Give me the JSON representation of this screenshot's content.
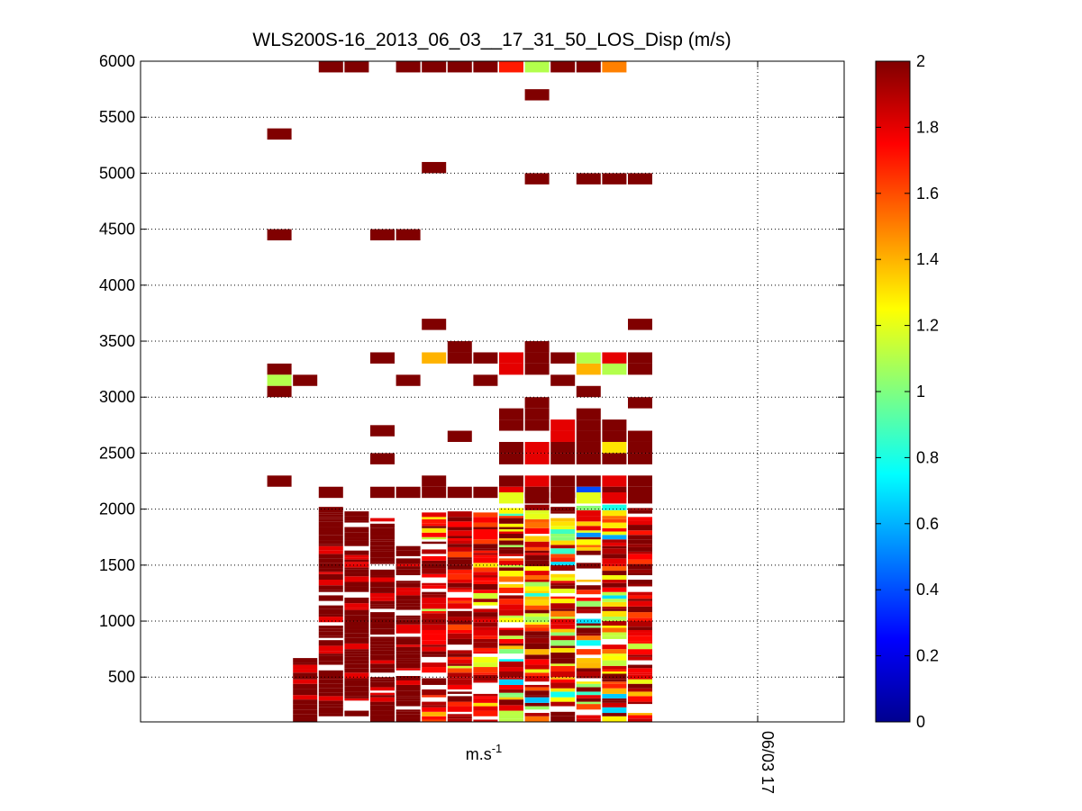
{
  "chart_data": {
    "type": "heatmap",
    "title": "WLS200S-16_2013_06_03__17_31_50_LOS_Disp (m/s)",
    "xlabel": "m.s",
    "xlabel_sup": "-1",
    "ylabel": "",
    "ylim": [
      100,
      6000
    ],
    "yticks": [
      500,
      1000,
      1500,
      2000,
      2500,
      3000,
      3500,
      4000,
      4500,
      5000,
      5500,
      6000
    ],
    "x_tick_label": "06/03 17",
    "grid": true,
    "colormap": "jet",
    "clim": [
      0,
      2
    ],
    "colorbar_ticks": [
      0,
      0.2,
      0.4,
      0.6,
      0.8,
      1,
      1.2,
      1.4,
      1.6,
      1.8,
      2
    ],
    "columns": 18,
    "cells": [
      [
        "c4",
        5950,
        2
      ],
      [
        "c5",
        5950,
        2
      ],
      [
        "c7",
        5950,
        2
      ],
      [
        "c8",
        5950,
        2
      ],
      [
        "c9",
        5950,
        2
      ],
      [
        "c10",
        5950,
        2
      ],
      [
        "c11",
        5950,
        1.7
      ],
      [
        "c12",
        5950,
        1.1
      ],
      [
        "c13",
        5950,
        2
      ],
      [
        "c14",
        5950,
        2
      ],
      [
        "c15",
        5950,
        1.5
      ],
      [
        "c12",
        5700,
        2
      ],
      [
        "c2",
        5350,
        2
      ],
      [
        "c8",
        5050,
        2
      ],
      [
        "c12",
        4950,
        2
      ],
      [
        "c14",
        4950,
        2
      ],
      [
        "c15",
        4950,
        2
      ],
      [
        "c16",
        4950,
        2
      ],
      [
        "c2",
        4450,
        2
      ],
      [
        "c6",
        4450,
        2
      ],
      [
        "c7",
        4450,
        2
      ],
      [
        "c8",
        3650,
        2
      ],
      [
        "c16",
        3650,
        2
      ],
      [
        "c9",
        3450,
        2
      ],
      [
        "c12",
        3450,
        2
      ],
      [
        "c6",
        3350,
        2
      ],
      [
        "c8",
        3350,
        1.4
      ],
      [
        "c9",
        3350,
        2
      ],
      [
        "c10",
        3350,
        2
      ],
      [
        "c11",
        3350,
        1.8
      ],
      [
        "c12",
        3350,
        2
      ],
      [
        "c13",
        3350,
        2
      ],
      [
        "c14",
        3350,
        1.1
      ],
      [
        "c15",
        3350,
        1.8
      ],
      [
        "c16",
        3350,
        2
      ],
      [
        "c2",
        3250,
        2
      ],
      [
        "c11",
        3250,
        1.8
      ],
      [
        "c12",
        3250,
        2
      ],
      [
        "c14",
        3250,
        1.4
      ],
      [
        "c15",
        3250,
        1.1
      ],
      [
        "c16",
        3250,
        2
      ],
      [
        "c2",
        3150,
        1.1
      ],
      [
        "c3",
        3150,
        2
      ],
      [
        "c7",
        3150,
        2
      ],
      [
        "c10",
        3150,
        2
      ],
      [
        "c13",
        3150,
        2
      ],
      [
        "c2",
        3050,
        2
      ],
      [
        "c14",
        3050,
        2
      ],
      [
        "c12",
        2950,
        2
      ],
      [
        "c16",
        2950,
        2
      ],
      [
        "c11",
        2850,
        2
      ],
      [
        "c12",
        2850,
        2
      ],
      [
        "c14",
        2850,
        2
      ],
      [
        "c11",
        2750,
        2
      ],
      [
        "c12",
        2750,
        2
      ],
      [
        "c13",
        2750,
        1.8
      ],
      [
        "c14",
        2750,
        2
      ],
      [
        "c15",
        2750,
        2
      ],
      [
        "c6",
        2700,
        2
      ],
      [
        "c9",
        2650,
        2
      ],
      [
        "c13",
        2650,
        1.8
      ],
      [
        "c14",
        2650,
        2
      ],
      [
        "c15",
        2650,
        2
      ],
      [
        "c16",
        2650,
        2
      ],
      [
        "c11",
        2550,
        2
      ],
      [
        "c12",
        2550,
        1.8
      ],
      [
        "c13",
        2550,
        2
      ],
      [
        "c14",
        2550,
        2
      ],
      [
        "c15",
        2550,
        1.3
      ],
      [
        "c16",
        2550,
        2
      ],
      [
        "c6",
        2450,
        2
      ],
      [
        "c11",
        2450,
        2
      ],
      [
        "c12",
        2450,
        1.8
      ],
      [
        "c13",
        2450,
        2
      ],
      [
        "c14",
        2450,
        2
      ],
      [
        "c15",
        2450,
        2
      ],
      [
        "c16",
        2450,
        2
      ],
      [
        "c2",
        2250,
        2
      ],
      [
        "c8",
        2250,
        2
      ],
      [
        "c11",
        2250,
        2
      ],
      [
        "c12",
        2250,
        1.8
      ],
      [
        "c13",
        2250,
        2
      ],
      [
        "c14",
        2250,
        2
      ],
      [
        "c15",
        2250,
        1.8
      ],
      [
        "c16",
        2250,
        2
      ],
      [
        "c4",
        2150,
        2
      ],
      [
        "c6",
        2150,
        2
      ],
      [
        "c7",
        2150,
        2
      ],
      [
        "c8",
        2150,
        2
      ],
      [
        "c9",
        2150,
        2
      ],
      [
        "c10",
        2150,
        2
      ],
      [
        "c11",
        2150,
        1.8
      ],
      [
        "c12",
        2150,
        2
      ],
      [
        "c13",
        2150,
        2
      ],
      [
        "c14",
        2150,
        0.4
      ],
      [
        "c15",
        2150,
        2
      ],
      [
        "c16",
        2150,
        2
      ],
      [
        "c11",
        2100,
        1.2
      ],
      [
        "c12",
        2100,
        2
      ],
      [
        "c13",
        2100,
        2
      ],
      [
        "c14",
        2100,
        1.2
      ],
      [
        "c15",
        2100,
        1.8
      ],
      [
        "c16",
        2100,
        2
      ]
    ],
    "notes": "Dense low-altitude region (≈100–2000 m) filled with mostly red/dark-red values (1.6–2 m/s) interspersed with yellow/green (≈1.0–1.4 m/s) and occasional cyan/blue (≈0.4–0.8 m/s) in columns 11–16."
  }
}
